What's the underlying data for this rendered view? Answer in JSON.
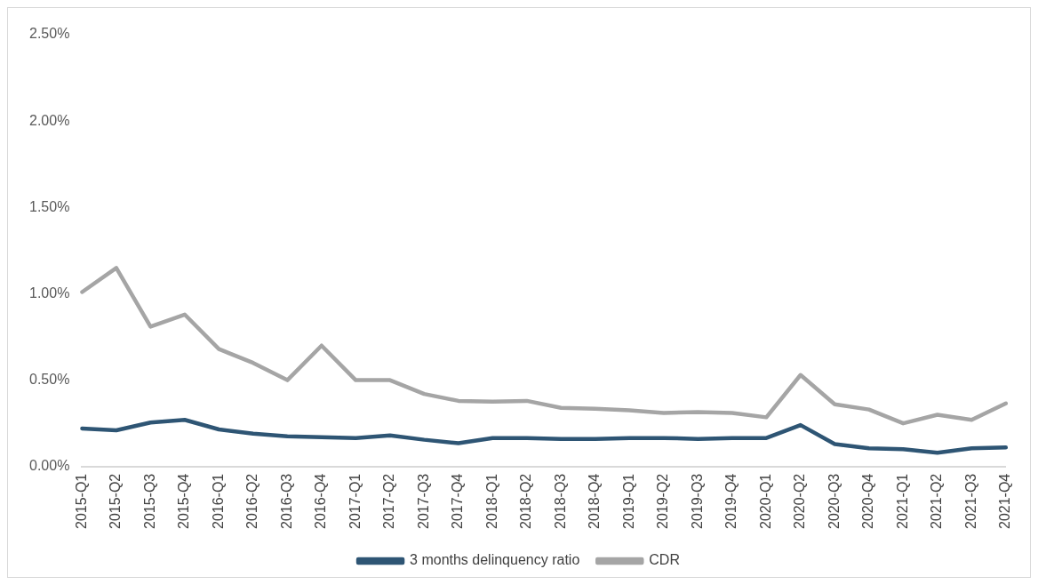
{
  "chart_data": {
    "type": "line",
    "categories": [
      "2015-Q1",
      "2015-Q2",
      "2015-Q3",
      "2015-Q4",
      "2016-Q1",
      "2016-Q2",
      "2016-Q3",
      "2016-Q4",
      "2017-Q1",
      "2017-Q2",
      "2017-Q3",
      "2017-Q4",
      "2018-Q1",
      "2018-Q2",
      "2018-Q3",
      "2018-Q4",
      "2019-Q1",
      "2019-Q2",
      "2019-Q3",
      "2019-Q4",
      "2020-Q1",
      "2020-Q2",
      "2020-Q3",
      "2020-Q4",
      "2021-Q1",
      "2021-Q2",
      "2021-Q3",
      "2021-Q4"
    ],
    "series": [
      {
        "name": "3 months delinquency ratio",
        "color": "#2e5574",
        "values": [
          0.22,
          0.21,
          0.255,
          0.27,
          0.215,
          0.19,
          0.175,
          0.17,
          0.165,
          0.18,
          0.155,
          0.135,
          0.165,
          0.165,
          0.16,
          0.16,
          0.165,
          0.165,
          0.16,
          0.165,
          0.165,
          0.24,
          0.13,
          0.105,
          0.1,
          0.08,
          0.105,
          0.11
        ]
      },
      {
        "name": "CDR",
        "color": "#a5a5a5",
        "values": [
          1.01,
          1.15,
          0.81,
          0.88,
          0.68,
          0.6,
          0.5,
          0.7,
          0.5,
          0.5,
          0.42,
          0.38,
          0.375,
          0.38,
          0.34,
          0.335,
          0.325,
          0.31,
          0.315,
          0.31,
          0.285,
          0.53,
          0.36,
          0.33,
          0.25,
          0.3,
          0.27,
          0.365
        ]
      }
    ],
    "ylim": [
      0,
      2.5
    ],
    "yticks": [
      {
        "value": 0,
        "label": "0.00%"
      },
      {
        "value": 0.5,
        "label": "0.50%"
      },
      {
        "value": 1,
        "label": "1.00%"
      },
      {
        "value": 1.5,
        "label": "1.50%"
      },
      {
        "value": 2,
        "label": "2.00%"
      },
      {
        "value": 2.5,
        "label": "2.50%"
      }
    ],
    "grid": false,
    "legend": "bottom",
    "marker": "none",
    "line_style": "solid"
  }
}
